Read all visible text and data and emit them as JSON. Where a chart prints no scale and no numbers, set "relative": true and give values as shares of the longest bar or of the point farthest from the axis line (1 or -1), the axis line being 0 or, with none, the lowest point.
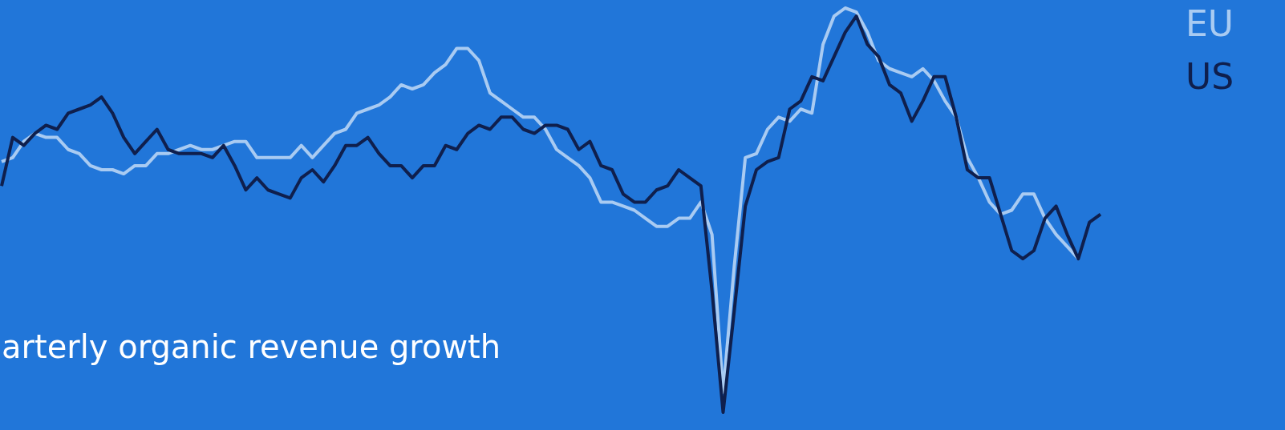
{
  "chart_data": {
    "type": "line",
    "relative": true,
    "legend": "right",
    "annotations": [
      "arterly organic revenue growth"
    ],
    "categories": [
      null,
      null,
      null,
      null,
      null,
      null,
      null,
      null,
      null,
      null,
      null,
      null,
      null,
      null,
      null,
      null,
      null,
      null,
      null,
      null,
      null,
      null,
      null,
      null,
      null,
      null,
      null,
      null,
      null,
      null,
      null,
      null,
      null,
      null,
      null,
      null,
      null,
      null,
      null,
      null,
      null,
      null,
      null,
      null,
      null,
      null,
      null,
      null,
      null,
      null,
      null,
      null,
      null,
      null,
      null,
      null,
      null,
      null,
      null,
      null,
      null,
      null,
      null,
      null,
      null,
      null,
      null,
      null,
      null,
      null,
      null,
      null,
      null,
      null,
      null,
      null,
      null,
      null,
      null,
      null,
      null,
      null,
      null,
      null,
      null,
      null,
      null,
      null,
      null,
      null,
      null,
      null,
      null,
      null,
      null,
      null,
      null,
      null,
      null,
      null
    ],
    "series": [
      {
        "name": "EU",
        "color": "#a9cbf2",
        "values": [
          0.62,
          0.63,
          0.67,
          0.69,
          0.68,
          0.68,
          0.65,
          0.64,
          0.61,
          0.6,
          0.6,
          0.59,
          0.61,
          0.61,
          0.64,
          0.64,
          0.65,
          0.66,
          0.65,
          0.65,
          0.66,
          0.67,
          0.67,
          0.63,
          0.63,
          0.63,
          0.63,
          0.66,
          0.63,
          0.66,
          0.69,
          0.7,
          0.74,
          0.75,
          0.76,
          0.78,
          0.81,
          0.8,
          0.81,
          0.84,
          0.86,
          0.9,
          0.9,
          0.87,
          0.79,
          0.77,
          0.75,
          0.73,
          0.73,
          0.7,
          0.65,
          0.63,
          0.61,
          0.58,
          0.52,
          0.52,
          0.51,
          0.5,
          0.48,
          0.46,
          0.46,
          0.48,
          0.48,
          0.52,
          0.44,
          0.05,
          0.36,
          0.63,
          0.64,
          0.7,
          0.73,
          0.72,
          0.75,
          0.74,
          0.91,
          0.98,
          1,
          0.99,
          0.94,
          0.87,
          0.85,
          0.84,
          0.83,
          0.85,
          0.82,
          0.77,
          0.73,
          0.63,
          0.58,
          0.52,
          0.49,
          0.5,
          0.54,
          0.54,
          0.48,
          0.44,
          0.41,
          0.38,
          null,
          null
        ]
      },
      {
        "name": "US",
        "color": "#0f1f4d",
        "values": [
          0.56,
          0.68,
          0.66,
          0.69,
          0.71,
          0.7,
          0.74,
          0.75,
          0.76,
          0.78,
          0.74,
          0.68,
          0.64,
          0.67,
          0.7,
          0.65,
          0.64,
          0.64,
          0.64,
          0.63,
          0.66,
          0.61,
          0.55,
          0.58,
          0.55,
          0.54,
          0.53,
          0.58,
          0.6,
          0.57,
          0.61,
          0.66,
          0.66,
          0.68,
          0.64,
          0.61,
          0.61,
          0.58,
          0.61,
          0.61,
          0.66,
          0.65,
          0.69,
          0.71,
          0.7,
          0.73,
          0.73,
          0.7,
          0.69,
          0.71,
          0.71,
          0.7,
          0.65,
          0.67,
          0.61,
          0.6,
          0.54,
          0.52,
          0.52,
          0.55,
          0.56,
          0.6,
          0.58,
          0.56,
          0.3,
          0,
          0.25,
          0.51,
          0.6,
          0.62,
          0.63,
          0.75,
          0.77,
          0.83,
          0.82,
          0.88,
          0.94,
          0.98,
          0.91,
          0.88,
          0.81,
          0.79,
          0.72,
          0.77,
          0.83,
          0.83,
          0.73,
          0.6,
          0.58,
          0.58,
          0.49,
          0.4,
          0.38,
          0.4,
          0.48,
          0.51,
          0.44,
          0.38,
          0.47,
          0.49
        ]
      }
    ]
  }
}
